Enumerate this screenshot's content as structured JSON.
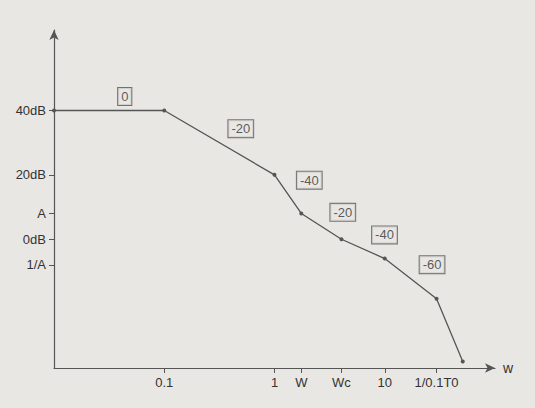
{
  "chart_data": {
    "type": "line",
    "x": [
      0.01,
      0.1,
      1,
      1.75,
      4.05,
      10,
      29.5,
      51
    ],
    "values": [
      40,
      40,
      20,
      8,
      0,
      -6,
      -18.5,
      -38
    ],
    "color": "#555555",
    "marker": "circle",
    "xlim": [
      0.01,
      100
    ],
    "ylim": [
      -40,
      65
    ],
    "xticks": [
      0.1,
      1,
      {
        "value": 1.75,
        "label": "W"
      },
      {
        "value": 4.05,
        "label": "Wc"
      },
      10,
      {
        "value": 29.5,
        "label": "1/0.1T0"
      }
    ],
    "yticks": [
      {
        "value": -8,
        "label": "1/A"
      },
      {
        "value": 0,
        "label": "0dB"
      },
      {
        "value": 8,
        "label": "A"
      },
      {
        "value": 20,
        "label": "20dB"
      },
      {
        "value": 40,
        "label": "40dB"
      }
    ],
    "x_label": "w",
    "log": "x",
    "grid": false,
    "slope_labels": [
      "0",
      "-20",
      "-40",
      "-20",
      "-40",
      "-60"
    ]
  }
}
